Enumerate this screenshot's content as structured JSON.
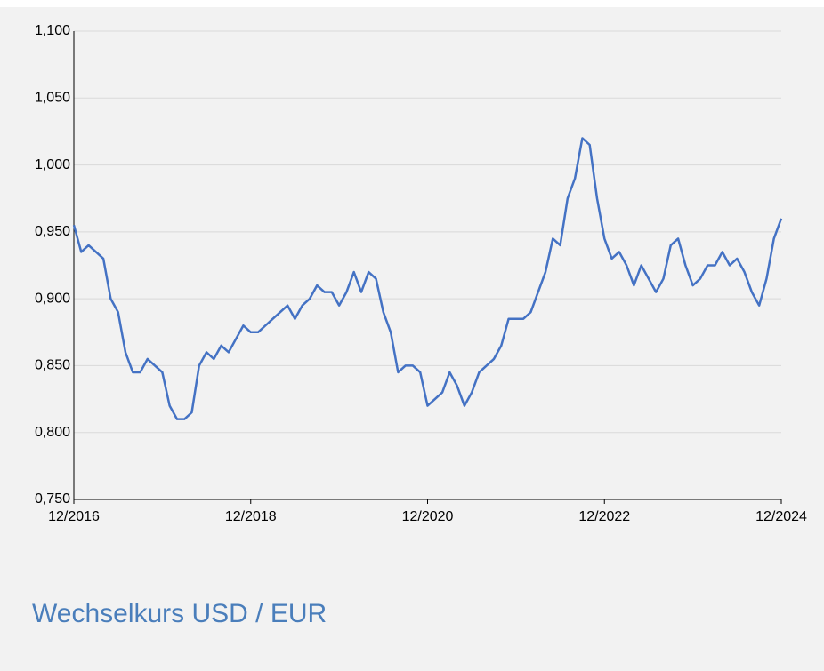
{
  "chart_data": {
    "type": "line",
    "title": "Wechselkurs USD / EUR",
    "x": [
      "12/2016",
      "01/2017",
      "02/2017",
      "03/2017",
      "04/2017",
      "05/2017",
      "06/2017",
      "07/2017",
      "08/2017",
      "09/2017",
      "10/2017",
      "11/2017",
      "12/2017",
      "01/2018",
      "02/2018",
      "03/2018",
      "04/2018",
      "05/2018",
      "06/2018",
      "07/2018",
      "08/2018",
      "09/2018",
      "10/2018",
      "11/2018",
      "12/2018",
      "01/2019",
      "02/2019",
      "03/2019",
      "04/2019",
      "05/2019",
      "06/2019",
      "07/2019",
      "08/2019",
      "09/2019",
      "10/2019",
      "11/2019",
      "12/2019",
      "01/2020",
      "02/2020",
      "03/2020",
      "04/2020",
      "05/2020",
      "06/2020",
      "07/2020",
      "08/2020",
      "09/2020",
      "10/2020",
      "11/2020",
      "12/2020",
      "01/2021",
      "02/2021",
      "03/2021",
      "04/2021",
      "05/2021",
      "06/2021",
      "07/2021",
      "08/2021",
      "09/2021",
      "10/2021",
      "11/2021",
      "12/2021",
      "01/2022",
      "02/2022",
      "03/2022",
      "04/2022",
      "05/2022",
      "06/2022",
      "07/2022",
      "08/2022",
      "09/2022",
      "10/2022",
      "11/2022",
      "12/2022",
      "01/2023",
      "02/2023",
      "03/2023",
      "04/2023",
      "05/2023",
      "06/2023",
      "07/2023",
      "08/2023",
      "09/2023",
      "10/2023",
      "11/2023",
      "12/2023",
      "01/2024",
      "02/2024",
      "03/2024",
      "04/2024",
      "05/2024",
      "06/2024",
      "07/2024",
      "08/2024",
      "09/2024",
      "10/2024",
      "11/2024",
      "12/2024"
    ],
    "series": [
      {
        "color": "#4472c4",
        "values": [
          0.955,
          0.935,
          0.94,
          0.935,
          0.93,
          0.9,
          0.89,
          0.86,
          0.845,
          0.845,
          0.855,
          0.85,
          0.845,
          0.82,
          0.81,
          0.81,
          0.815,
          0.85,
          0.86,
          0.855,
          0.865,
          0.86,
          0.87,
          0.88,
          0.875,
          0.875,
          0.88,
          0.885,
          0.89,
          0.895,
          0.885,
          0.895,
          0.9,
          0.91,
          0.905,
          0.905,
          0.895,
          0.905,
          0.92,
          0.905,
          0.92,
          0.915,
          0.89,
          0.875,
          0.845,
          0.85,
          0.85,
          0.845,
          0.82,
          0.825,
          0.83,
          0.845,
          0.835,
          0.82,
          0.83,
          0.845,
          0.85,
          0.855,
          0.865,
          0.885,
          0.885,
          0.885,
          0.89,
          0.905,
          0.92,
          0.945,
          0.94,
          0.975,
          0.99,
          1.02,
          1.015,
          0.975,
          0.945,
          0.93,
          0.935,
          0.925,
          0.91,
          0.925,
          0.915,
          0.905,
          0.915,
          0.94,
          0.945,
          0.925,
          0.91,
          0.915,
          0.925,
          0.925,
          0.935,
          0.925,
          0.93,
          0.92,
          0.905,
          0.895,
          0.915,
          0.945,
          0.96
        ]
      }
    ],
    "xlim": [
      "12/2016",
      "12/2024"
    ],
    "xticks": [
      "12/2016",
      "12/2018",
      "12/2020",
      "12/2022",
      "12/2024"
    ],
    "ylim": [
      0.75,
      1.1
    ],
    "yticks": [
      {
        "value": 0.75,
        "label": "0,750"
      },
      {
        "value": 0.8,
        "label": "0,800"
      },
      {
        "value": 0.85,
        "label": "0,850"
      },
      {
        "value": 0.9,
        "label": "0,900"
      },
      {
        "value": 0.95,
        "label": "0,950"
      },
      {
        "value": 1.0,
        "label": "1,000"
      },
      {
        "value": 1.05,
        "label": "1,050"
      },
      {
        "value": 1.1,
        "label": "1,100"
      }
    ],
    "grid": true
  }
}
